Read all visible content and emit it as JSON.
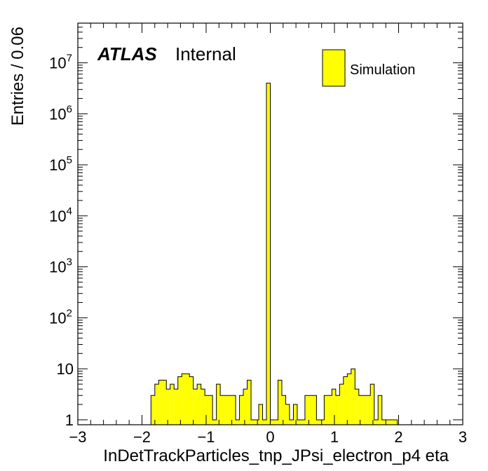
{
  "chart_data": {
    "type": "bar",
    "title": "",
    "xlabel": "InDetTrackParticles_tnp_JPsi_electron_p4 eta",
    "ylabel": "Entries / 0.06",
    "xlim": [
      -3,
      3
    ],
    "ylim": [
      0.8,
      60000000
    ],
    "yscale": "log",
    "bin_width": 0.06,
    "x_ticks": [
      "−3",
      "−2",
      "−1",
      "0",
      "1",
      "2",
      "3"
    ],
    "y_ticks": [
      {
        "base": "1",
        "exp": ""
      },
      {
        "base": "10",
        "exp": ""
      },
      {
        "base": "10",
        "exp": "2"
      },
      {
        "base": "10",
        "exp": "3"
      },
      {
        "base": "10",
        "exp": "4"
      },
      {
        "base": "10",
        "exp": "5"
      },
      {
        "base": "10",
        "exp": "6"
      },
      {
        "base": "10",
        "exp": "7"
      }
    ],
    "annotations": {
      "atlas": "ATLAS",
      "label": "Internal"
    },
    "legend": {
      "position": "top-right",
      "entries": [
        "Simulation"
      ]
    },
    "colors": {
      "fill": "#ffff00",
      "line": "#000000"
    },
    "series": [
      {
        "name": "Simulation",
        "x": [
          -1.83,
          -1.77,
          -1.71,
          -1.65,
          -1.59,
          -1.53,
          -1.47,
          -1.41,
          -1.35,
          -1.29,
          -1.23,
          -1.17,
          -1.11,
          -1.05,
          -0.99,
          -0.93,
          -0.87,
          -0.81,
          -0.75,
          -0.69,
          -0.63,
          -0.57,
          -0.51,
          -0.45,
          -0.39,
          -0.33,
          -0.27,
          -0.21,
          -0.15,
          -0.09,
          -0.03,
          0.03,
          0.09,
          0.15,
          0.21,
          0.27,
          0.33,
          0.39,
          0.45,
          0.51,
          0.57,
          0.63,
          0.69,
          0.75,
          0.81,
          0.87,
          0.93,
          0.99,
          1.05,
          1.11,
          1.17,
          1.23,
          1.29,
          1.35,
          1.41,
          1.47,
          1.53,
          1.59,
          1.65,
          1.71,
          1.77,
          1.83,
          1.89,
          1.95
        ],
        "values": [
          3,
          5,
          6,
          6,
          4,
          5,
          4,
          7,
          8,
          8,
          7,
          4,
          5,
          4,
          3,
          3,
          1,
          5,
          3,
          3,
          3,
          3,
          1,
          3,
          4,
          6,
          1,
          1,
          2,
          1,
          4000000,
          1,
          1,
          6,
          3,
          2,
          1,
          2,
          1,
          1,
          3,
          3,
          3,
          1,
          1,
          3,
          3,
          4,
          3,
          5,
          7,
          8,
          10,
          4,
          3,
          3,
          3,
          5,
          1,
          3,
          1,
          1,
          1,
          1
        ]
      }
    ]
  }
}
